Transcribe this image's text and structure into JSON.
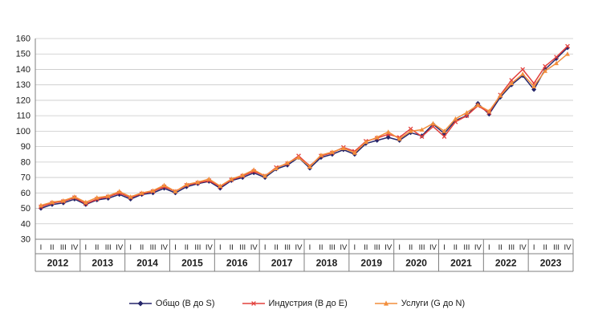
{
  "chart_data": {
    "type": "line",
    "title": "",
    "xlabel": "",
    "ylabel": "",
    "ylim": [
      30,
      160
    ],
    "ytick_step": 10,
    "grid": true,
    "legend_position": "bottom",
    "quarter_labels": [
      "I",
      "II",
      "III",
      "IV"
    ],
    "years": [
      "2012",
      "2013",
      "2014",
      "2015",
      "2016",
      "2017",
      "2018",
      "2019",
      "2020",
      "2021",
      "2022",
      "2023"
    ],
    "series": [
      {
        "name": "Общо (B до S)",
        "color": "#26276b",
        "marker": "diamond",
        "values": [
          50,
          52.5,
          53.5,
          56,
          52.5,
          55.5,
          56.5,
          59,
          56,
          59,
          60,
          63,
          60,
          64,
          66,
          67.5,
          63,
          68,
          70,
          73,
          70,
          75.5,
          78,
          83,
          76,
          83,
          85,
          88,
          85,
          92,
          94,
          96,
          94,
          99,
          97,
          104.5,
          98.5,
          107,
          110,
          118,
          111,
          122,
          130,
          136,
          127,
          140,
          147,
          154
        ]
      },
      {
        "name": "Индустрия (B до E)",
        "color": "#e2403c",
        "marker": "x",
        "values": [
          51,
          53.5,
          54.5,
          57,
          53,
          56,
          57.5,
          60,
          57,
          59.5,
          61,
          64,
          61,
          65,
          66.5,
          68,
          64,
          68.5,
          71,
          74,
          71,
          76.5,
          79,
          84,
          77.5,
          84,
          86,
          89.5,
          87,
          93.5,
          95.5,
          98,
          96,
          101.5,
          96.5,
          103,
          96.5,
          106,
          110,
          116.5,
          112,
          123.5,
          133,
          140,
          131,
          142,
          148,
          155
        ]
      },
      {
        "name": "Услуги (G до N)",
        "color": "#f28e3c",
        "marker": "triangle",
        "values": [
          52,
          54,
          55,
          57.5,
          54,
          57,
          58,
          61,
          57.5,
          60,
          61.5,
          65,
          61,
          65.5,
          67,
          69,
          64.5,
          69,
          71.5,
          75,
          71,
          76,
          79.5,
          83,
          77,
          84.5,
          86.5,
          89,
          86,
          93,
          96,
          99.5,
          95,
          100,
          101,
          105,
          100,
          108,
          112,
          117,
          113,
          123,
          131,
          137,
          129,
          139,
          144,
          150
        ]
      }
    ]
  }
}
